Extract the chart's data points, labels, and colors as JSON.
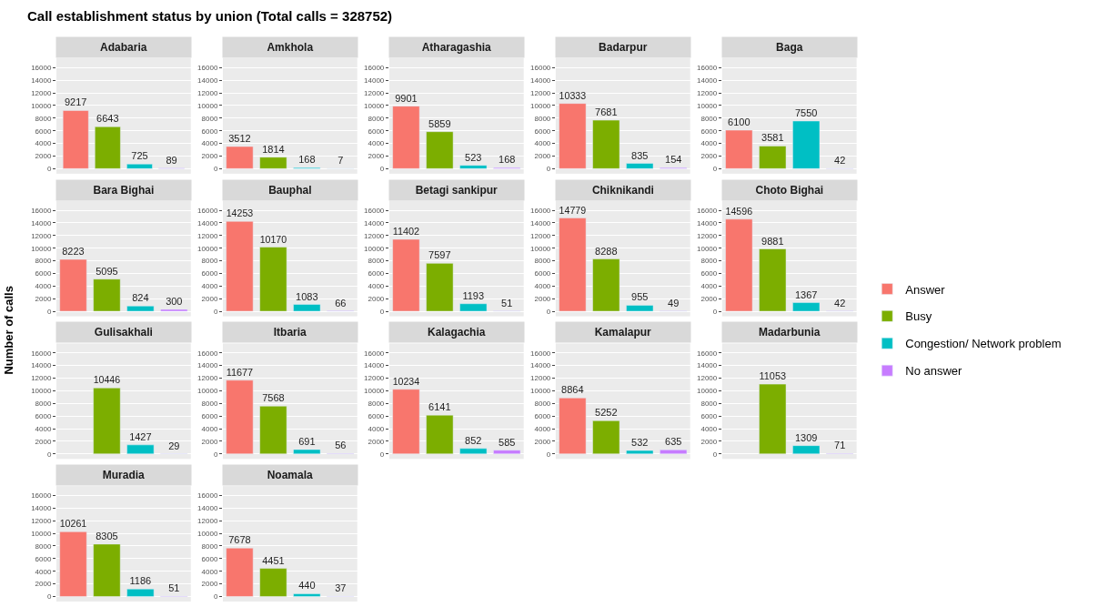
{
  "chart_data": [
    {
      "type": "bar",
      "title": "Adabaria",
      "annotations": [
        "Call establishment status by union (Total calls = 328752)"
      ],
      "legend": "right",
      "categories": [
        null
      ],
      "series": [
        {
          "name": "Answer",
          "color": "#f8766d",
          "values": [
            9217
          ]
        },
        {
          "name": "Busy",
          "color": "#7cae00",
          "values": [
            6643
          ]
        },
        {
          "name": "Congestion/ Network problem",
          "color": "#00bfc4",
          "values": [
            725
          ]
        },
        {
          "name": "No answer",
          "color": "#c77cff",
          "values": [
            89
          ]
        }
      ],
      "ylim": [
        -800,
        17500
      ],
      "yticks": [
        0,
        2000,
        4000,
        6000,
        8000,
        10000,
        12000,
        14000,
        16000
      ],
      "grid": true,
      "data_labels": true,
      "tick_labels": "y"
    },
    {
      "type": "bar",
      "title": "Amkhola",
      "categories": [
        null,
        null,
        null,
        null
      ],
      "values": [
        3512,
        1814,
        168,
        7
      ],
      "colors": [
        "#f8766d",
        "#7cae00",
        "#00bfc4",
        "#c77cff"
      ],
      "ylim": [
        -800,
        17500
      ],
      "yticks": [
        0,
        2000,
        4000,
        6000,
        8000,
        10000,
        12000,
        14000,
        16000
      ],
      "grid": true,
      "data_labels": true,
      "tick_labels": "y"
    },
    {
      "type": "bar",
      "title": "Atharagashia",
      "categories": [
        null,
        null,
        null,
        null
      ],
      "values": [
        9901,
        5859,
        523,
        168
      ],
      "colors": [
        "#f8766d",
        "#7cae00",
        "#00bfc4",
        "#c77cff"
      ],
      "ylim": [
        -800,
        17500
      ],
      "yticks": [
        0,
        2000,
        4000,
        6000,
        8000,
        10000,
        12000,
        14000,
        16000
      ],
      "grid": true,
      "data_labels": true,
      "tick_labels": "y"
    },
    {
      "type": "bar",
      "title": "Badarpur",
      "categories": [
        null,
        null,
        null,
        null
      ],
      "values": [
        10333,
        7681,
        835,
        154
      ],
      "colors": [
        "#f8766d",
        "#7cae00",
        "#00bfc4",
        "#c77cff"
      ],
      "ylim": [
        -800,
        17500
      ],
      "yticks": [
        0,
        2000,
        4000,
        6000,
        8000,
        10000,
        12000,
        14000,
        16000
      ],
      "grid": true,
      "data_labels": true,
      "tick_labels": "y"
    },
    {
      "type": "bar",
      "title": "Baga",
      "categories": [
        null,
        null,
        null,
        null
      ],
      "values": [
        6100,
        3581,
        7550,
        42
      ],
      "colors": [
        "#f8766d",
        "#7cae00",
        "#00bfc4",
        "#c77cff"
      ],
      "ylim": [
        -800,
        17500
      ],
      "yticks": [
        0,
        2000,
        4000,
        6000,
        8000,
        10000,
        12000,
        14000,
        16000
      ],
      "grid": true,
      "data_labels": true,
      "tick_labels": "y"
    },
    {
      "type": "bar",
      "title": "Bara Bighai",
      "categories": [
        null,
        null,
        null,
        null
      ],
      "values": [
        8223,
        5095,
        824,
        300
      ],
      "colors": [
        "#f8766d",
        "#7cae00",
        "#00bfc4",
        "#c77cff"
      ],
      "ylim": [
        -800,
        17500
      ],
      "yticks": [
        0,
        2000,
        4000,
        6000,
        8000,
        10000,
        12000,
        14000,
        16000
      ],
      "grid": true,
      "data_labels": true,
      "tick_labels": "y"
    },
    {
      "type": "bar",
      "title": "Bauphal",
      "categories": [
        null,
        null,
        null,
        null
      ],
      "values": [
        14253,
        10170,
        1083,
        66
      ],
      "colors": [
        "#f8766d",
        "#7cae00",
        "#00bfc4",
        "#c77cff"
      ],
      "ylim": [
        -800,
        17500
      ],
      "yticks": [
        0,
        2000,
        4000,
        6000,
        8000,
        10000,
        12000,
        14000,
        16000
      ],
      "grid": true,
      "data_labels": true,
      "tick_labels": "y"
    },
    {
      "type": "bar",
      "title": "Betagi sankipur",
      "categories": [
        null,
        null,
        null,
        null
      ],
      "values": [
        11402,
        7597,
        1193,
        51
      ],
      "colors": [
        "#f8766d",
        "#7cae00",
        "#00bfc4",
        "#c77cff"
      ],
      "ylim": [
        -800,
        17500
      ],
      "yticks": [
        0,
        2000,
        4000,
        6000,
        8000,
        10000,
        12000,
        14000,
        16000
      ],
      "grid": true,
      "data_labels": true,
      "tick_labels": "y"
    },
    {
      "type": "bar",
      "title": "Chiknikandi",
      "categories": [
        null,
        null,
        null,
        null
      ],
      "values": [
        14779,
        8288,
        955,
        49
      ],
      "colors": [
        "#f8766d",
        "#7cae00",
        "#00bfc4",
        "#c77cff"
      ],
      "ylim": [
        -800,
        17500
      ],
      "yticks": [
        0,
        2000,
        4000,
        6000,
        8000,
        10000,
        12000,
        14000,
        16000
      ],
      "grid": true,
      "data_labels": true,
      "tick_labels": "y"
    },
    {
      "type": "bar",
      "title": "Choto Bighai",
      "categories": [
        null,
        null,
        null,
        null
      ],
      "values": [
        14596,
        9881,
        1367,
        42
      ],
      "colors": [
        "#f8766d",
        "#7cae00",
        "#00bfc4",
        "#c77cff"
      ],
      "ylim": [
        -800,
        17500
      ],
      "yticks": [
        0,
        2000,
        4000,
        6000,
        8000,
        10000,
        12000,
        14000,
        16000
      ],
      "grid": true,
      "data_labels": true,
      "tick_labels": "y"
    },
    {
      "type": "bar",
      "title": "Gulisakhali",
      "ylabel": "Number of calls",
      "categories": [
        null,
        null,
        null,
        null
      ],
      "values": [
        null,
        10446,
        1427,
        29
      ],
      "colors": [
        "#f8766d",
        "#7cae00",
        "#00bfc4",
        "#c77cff"
      ],
      "ylim": [
        -800,
        17500
      ],
      "yticks": [
        0,
        2000,
        4000,
        6000,
        8000,
        10000,
        12000,
        14000,
        16000
      ],
      "grid": true,
      "data_labels": true,
      "tick_labels": "y"
    },
    {
      "type": "bar",
      "title": "Itbaria",
      "categories": [
        null,
        null,
        null,
        null
      ],
      "values": [
        11677,
        7568,
        691,
        56
      ],
      "colors": [
        "#f8766d",
        "#7cae00",
        "#00bfc4",
        "#c77cff"
      ],
      "ylim": [
        -800,
        17500
      ],
      "yticks": [
        0,
        2000,
        4000,
        6000,
        8000,
        10000,
        12000,
        14000,
        16000
      ],
      "grid": true,
      "data_labels": true,
      "tick_labels": "y"
    },
    {
      "type": "bar",
      "title": "Kalagachia",
      "categories": [
        null,
        null,
        null,
        null
      ],
      "values": [
        10234,
        6141,
        852,
        585
      ],
      "colors": [
        "#f8766d",
        "#7cae00",
        "#00bfc4",
        "#c77cff"
      ],
      "ylim": [
        -800,
        17500
      ],
      "yticks": [
        0,
        2000,
        4000,
        6000,
        8000,
        10000,
        12000,
        14000,
        16000
      ],
      "grid": true,
      "data_labels": true,
      "tick_labels": "y"
    },
    {
      "type": "bar",
      "title": "Kamalapur",
      "categories": [
        null,
        null,
        null,
        null
      ],
      "values": [
        8864,
        5252,
        532,
        635
      ],
      "colors": [
        "#f8766d",
        "#7cae00",
        "#00bfc4",
        "#c77cff"
      ],
      "ylim": [
        -800,
        17500
      ],
      "yticks": [
        0,
        2000,
        4000,
        6000,
        8000,
        10000,
        12000,
        14000,
        16000
      ],
      "grid": true,
      "data_labels": true,
      "tick_labels": "y"
    },
    {
      "type": "bar",
      "title": "Madarbunia",
      "categories": [
        null,
        null,
        null,
        null
      ],
      "values": [
        null,
        11053,
        1309,
        71
      ],
      "colors": [
        "#f8766d",
        "#7cae00",
        "#00bfc4",
        "#c77cff"
      ],
      "ylim": [
        -800,
        17500
      ],
      "yticks": [
        0,
        2000,
        4000,
        6000,
        8000,
        10000,
        12000,
        14000,
        16000
      ],
      "grid": true,
      "data_labels": true,
      "tick_labels": "y"
    },
    {
      "type": "bar",
      "title": "Muradia",
      "categories": [
        null,
        null,
        null,
        null
      ],
      "values": [
        10261,
        8305,
        1186,
        51
      ],
      "colors": [
        "#f8766d",
        "#7cae00",
        "#00bfc4",
        "#c77cff"
      ],
      "ylim": [
        -800,
        17500
      ],
      "yticks": [
        0,
        2000,
        4000,
        6000,
        8000,
        10000,
        12000,
        14000,
        16000
      ],
      "grid": true,
      "data_labels": true,
      "tick_labels": "y"
    },
    {
      "type": "bar",
      "title": "Noamala",
      "categories": [
        null,
        null,
        null,
        null
      ],
      "values": [
        7678,
        4451,
        440,
        37
      ],
      "colors": [
        "#f8766d",
        "#7cae00",
        "#00bfc4",
        "#c77cff"
      ],
      "ylim": [
        -800,
        17500
      ],
      "yticks": [
        0,
        2000,
        4000,
        6000,
        8000,
        10000,
        12000,
        14000,
        16000
      ],
      "grid": true,
      "data_labels": true,
      "tick_labels": "y"
    }
  ]
}
